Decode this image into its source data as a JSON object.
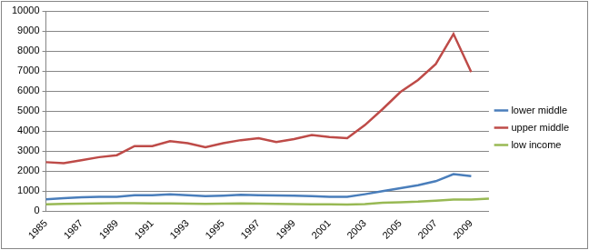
{
  "chart_data": {
    "type": "line",
    "categories": [
      "1985",
      null,
      "1987",
      null,
      "1989",
      null,
      "1991",
      null,
      "1993",
      null,
      "1995",
      null,
      "1997",
      null,
      "1999",
      null,
      "2001",
      null,
      "2003",
      null,
      "2005",
      null,
      "2007",
      null,
      "2009",
      null
    ],
    "series": [
      {
        "name": "lower middle",
        "color": "#4a7ebb",
        "values": [
          600,
          650,
          700,
          720,
          720,
          800,
          800,
          850,
          800,
          750,
          780,
          820,
          800,
          790,
          780,
          750,
          720,
          720,
          850,
          1000,
          1150,
          1300,
          1500,
          1850,
          1750,
          null
        ]
      },
      {
        "name": "upper middle",
        "color": "#be4b48",
        "values": [
          2450,
          2400,
          2550,
          2700,
          2800,
          3250,
          3250,
          3500,
          3400,
          3200,
          3400,
          3550,
          3650,
          3450,
          3600,
          3800,
          3700,
          3650,
          4300,
          5100,
          5950,
          6550,
          7350,
          8850,
          6950,
          null
        ]
      },
      {
        "name": "low income",
        "color": "#98b954",
        "values": [
          350,
          370,
          380,
          390,
          400,
          400,
          390,
          390,
          380,
          370,
          380,
          390,
          380,
          370,
          360,
          350,
          340,
          330,
          360,
          420,
          450,
          480,
          530,
          580,
          580,
          630
        ]
      }
    ],
    "ylim": [
      0,
      10000
    ],
    "yticks": [
      0,
      1000,
      2000,
      3000,
      4000,
      5000,
      6000,
      7000,
      8000,
      9000,
      10000
    ],
    "grid": true,
    "legend": "right"
  }
}
